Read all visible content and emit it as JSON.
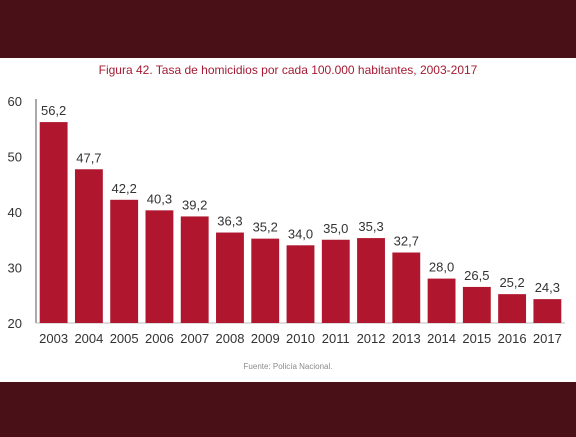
{
  "colors": {
    "frame": "#4a1018",
    "bar": "#b0172f",
    "title": "#a41a32"
  },
  "title": "Figura 42. Tasa de homicidios por cada 100.000 habitantes, 2003-2017",
  "source": "Fuente: Policía Nacional.",
  "chart_data": {
    "type": "bar",
    "title": "Figura 42. Tasa de homicidios por cada 100.000 habitantes, 2003-2017",
    "xlabel": "",
    "ylabel": "",
    "categories": [
      "2003",
      "2004",
      "2005",
      "2006",
      "2007",
      "2008",
      "2009",
      "2010",
      "2011",
      "2012",
      "2013",
      "2014",
      "2015",
      "2016",
      "2017"
    ],
    "values": [
      56.2,
      47.7,
      42.2,
      40.3,
      39.2,
      36.3,
      35.2,
      34.0,
      35.0,
      35.3,
      32.7,
      28.0,
      26.5,
      25.2,
      24.3
    ],
    "value_labels": [
      "56,2",
      "47,7",
      "42,2",
      "40,3",
      "39,2",
      "36,3",
      "35,2",
      "34,0",
      "35,0",
      "35,3",
      "32,7",
      "28,0",
      "26,5",
      "25,2",
      "24,3"
    ],
    "ylim": [
      20,
      60
    ],
    "yticks": [
      "20",
      "30",
      "40",
      "50",
      "60"
    ],
    "grid": false,
    "legend": "none"
  }
}
